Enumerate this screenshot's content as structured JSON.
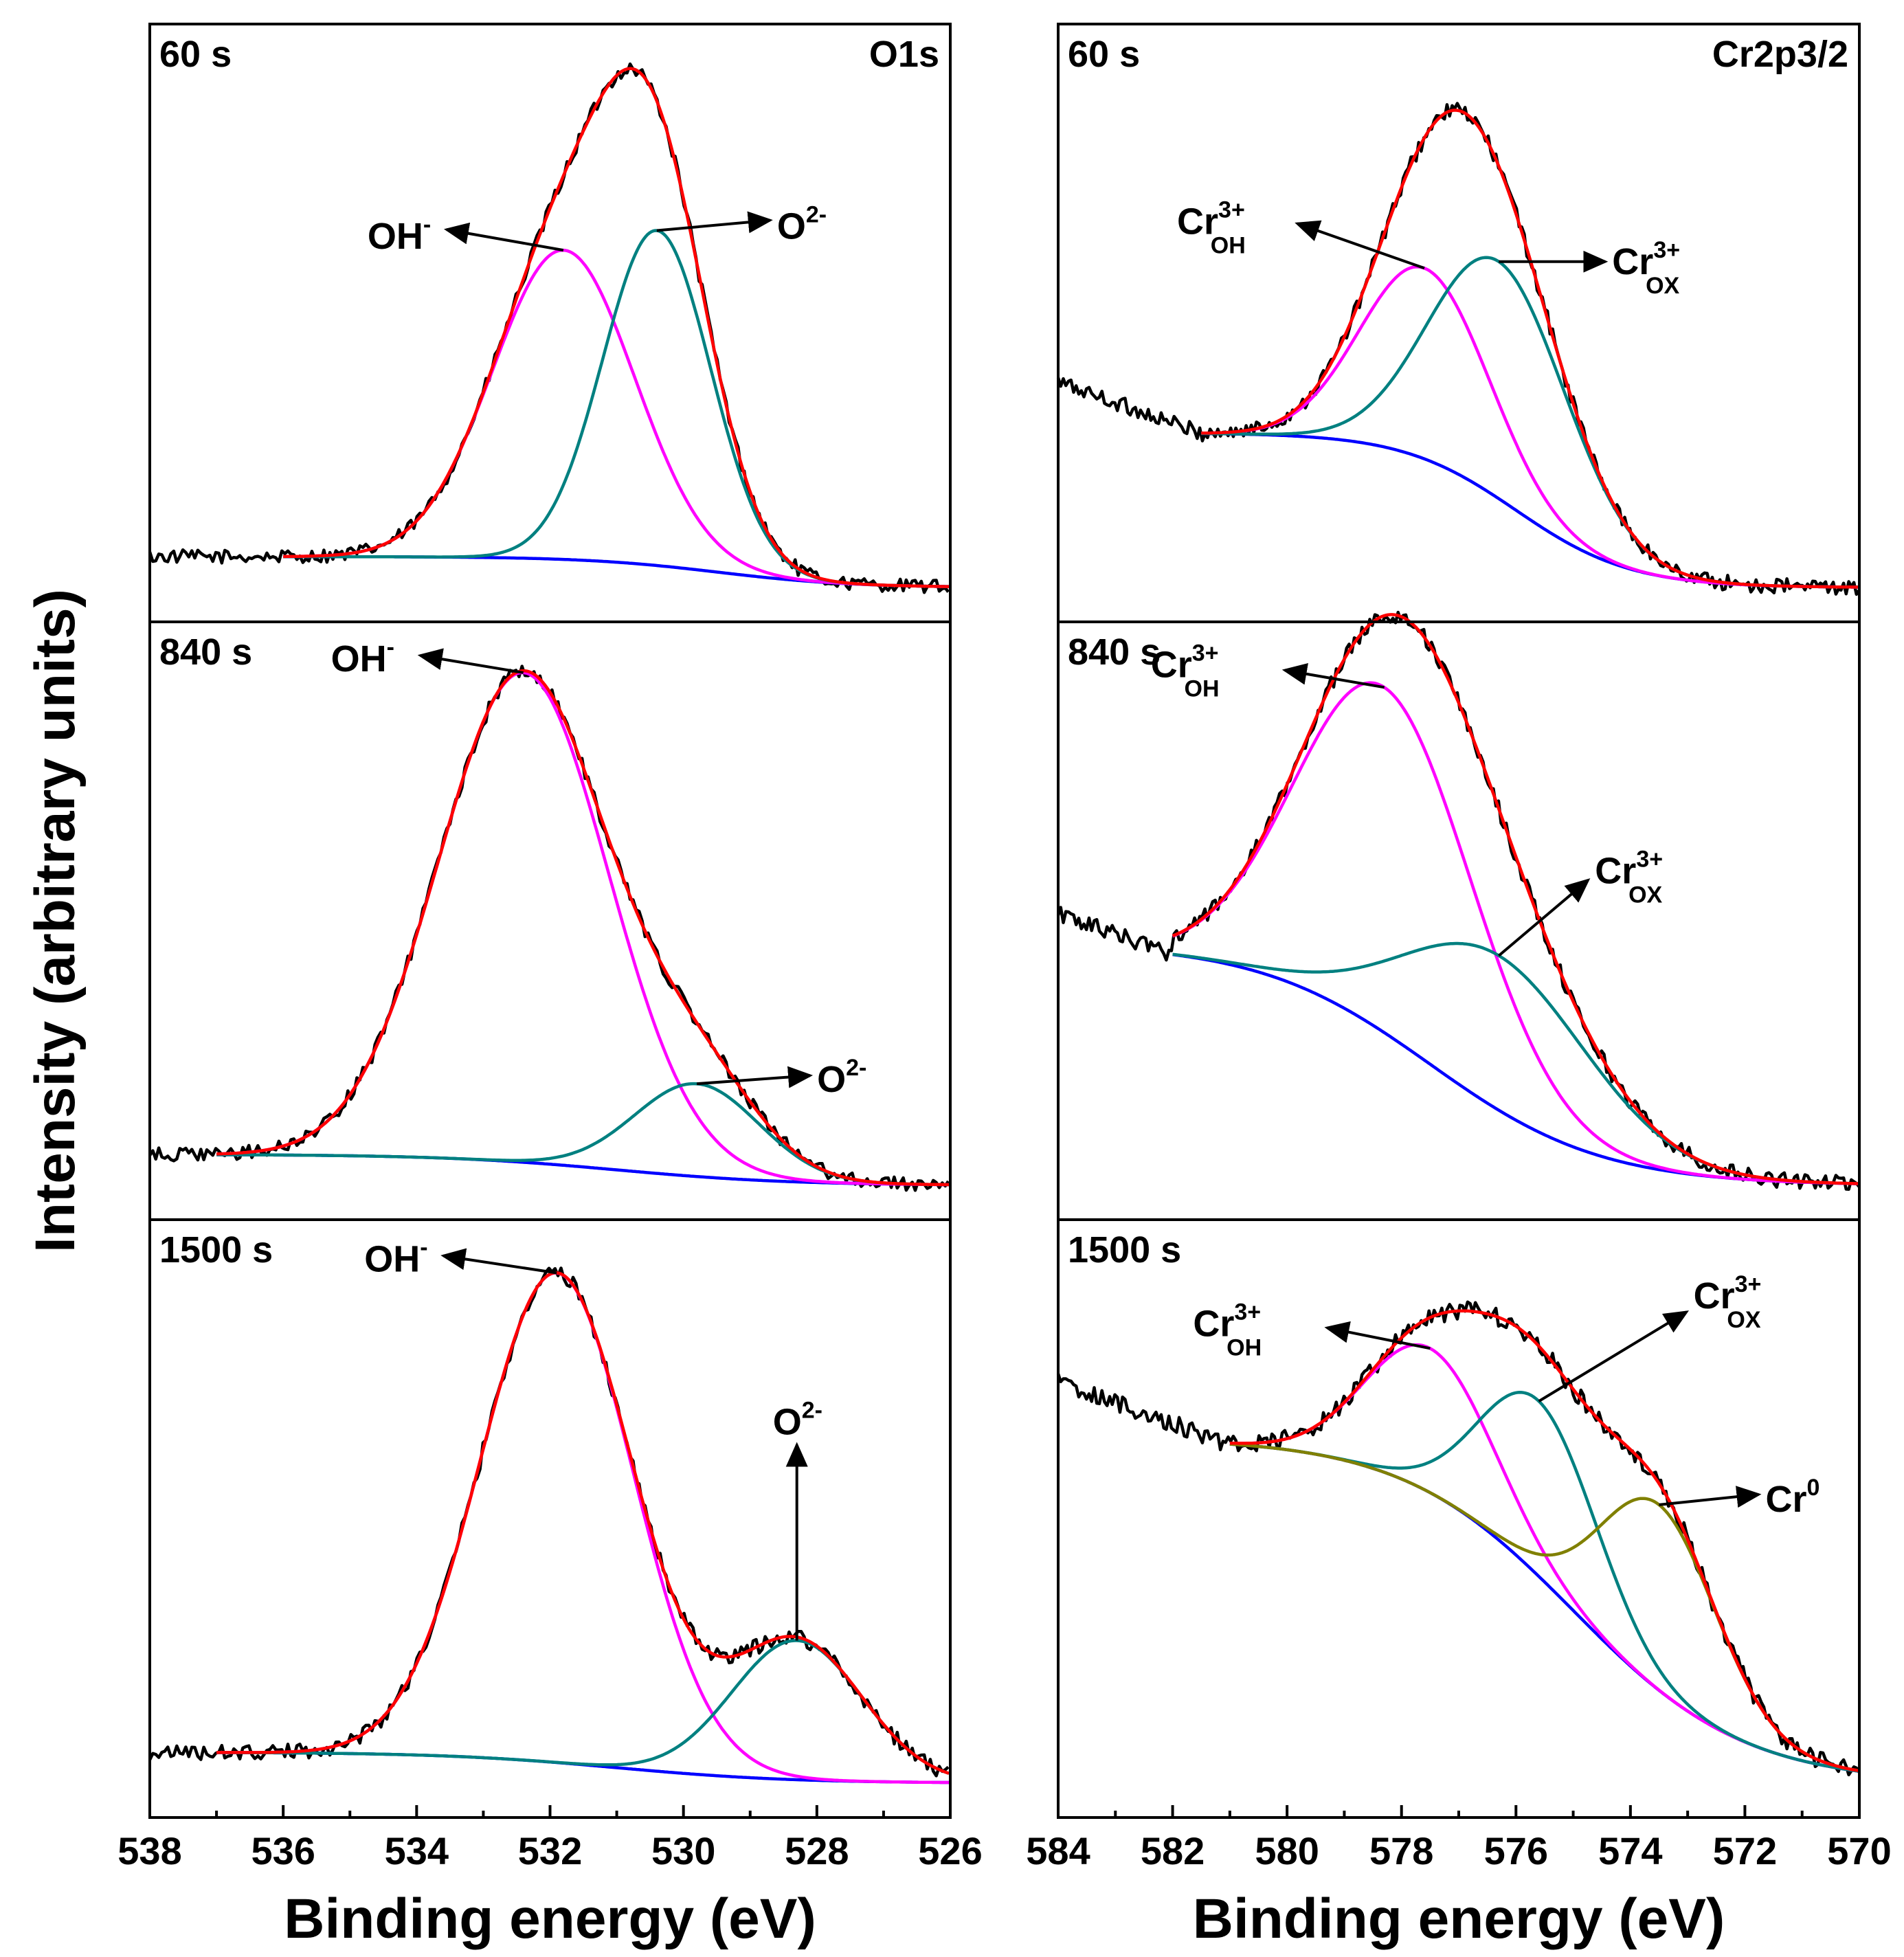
{
  "chart_data": {
    "type": "line",
    "y_axis_label": "Intensity (arbitrary units)",
    "colors": {
      "experimental": "#000000",
      "envelope": "#ff0000",
      "OH": "#ff00ff",
      "O2": "#008080",
      "Cr_OX": "#008080",
      "Cr0": "#808000",
      "background": "#0000ff"
    },
    "columns": [
      {
        "id": "O1s",
        "spectrum_label": "O1s",
        "xlabel": "Binding energy (eV)",
        "xlim": [
          538,
          526
        ],
        "xticks": [
          538,
          536,
          534,
          532,
          530,
          528,
          526
        ],
        "xtick_labels": [
          "538",
          "536",
          "534",
          "532",
          "530",
          "528",
          "526"
        ],
        "panels": [
          {
            "time": "60 s",
            "fit_range": [
              536,
              526
            ],
            "noise": 0.012,
            "bg_tail": [
              0,
              526.0
            ],
            "background": {
              "high": 0.06,
              "low": 0.0,
              "center": 529.5,
              "width": 1.0
            },
            "components": [
              {
                "name": "OH-",
                "series": "OH",
                "center": 531.8,
                "height": 0.6,
                "fwhm": 2.5
              },
              {
                "name": "O2-",
                "series": "O2",
                "center": 530.4,
                "height": 0.65,
                "fwhm": 1.9
              }
            ],
            "annotations": [
              {
                "label": "OH",
                "sup": "-",
                "sub": "",
                "to": "OH-"
              },
              {
                "label": "O",
                "sup": "2-",
                "sub": "",
                "to": "O2-"
              }
            ]
          },
          {
            "time": "840 s",
            "fit_range": [
              537,
              526
            ],
            "noise": 0.012,
            "bg_tail": [
              0,
              526.0
            ],
            "background": {
              "high": 0.06,
              "low": 0.0,
              "center": 531.0,
              "width": 1.3
            },
            "components": [
              {
                "name": "OH-",
                "series": "OH",
                "center": 532.4,
                "height": 0.95,
                "fwhm": 3.0
              },
              {
                "name": "O2-",
                "series": "O2",
                "center": 529.8,
                "height": 0.18,
                "fwhm": 2.2
              }
            ],
            "annotations": [
              {
                "label": "OH",
                "sup": "-",
                "sub": "",
                "to": "OH-"
              },
              {
                "label": "O",
                "sup": "2-",
                "sub": "",
                "to": "O2-"
              }
            ]
          },
          {
            "time": "1500 s",
            "fit_range": [
              537,
              526
            ],
            "noise": 0.014,
            "bg_tail": [
              0,
              526.0
            ],
            "background": {
              "high": 0.06,
              "low": 0.0,
              "center": 531.0,
              "width": 1.3
            },
            "components": [
              {
                "name": "OH-",
                "series": "OH",
                "center": 531.9,
                "height": 0.95,
                "fwhm": 2.7
              },
              {
                "name": "O2-",
                "series": "O2",
                "center": 528.3,
                "height": 0.27,
                "fwhm": 2.3
              }
            ],
            "annotations": [
              {
                "label": "OH",
                "sup": "-",
                "sub": "",
                "to": "OH-"
              },
              {
                "label": "O",
                "sup": "2-",
                "sub": "",
                "to": "O2-"
              }
            ]
          }
        ]
      },
      {
        "id": "Cr2p",
        "spectrum_label": "Cr2p3/2",
        "xlabel": "Binding energy (eV)",
        "xlim": [
          584,
          570
        ],
        "xticks": [
          584,
          582,
          580,
          578,
          576,
          574,
          572,
          570
        ],
        "xtick_labels": [
          "584",
          "582",
          "580",
          "578",
          "576",
          "574",
          "572",
          "570"
        ],
        "panels": [
          {
            "time": "60 s",
            "fit_range": [
              581.5,
              570
            ],
            "noise": 0.014,
            "bg_tail": [
              584,
              570
            ],
            "background": {
              "high": 0.3,
              "low": 0.0,
              "center": 576.0,
              "width": 1.0
            },
            "components": [
              {
                "name": "Cr3+ OH",
                "series": "OH",
                "center": 577.6,
                "height": 0.37,
                "fwhm": 2.6
              },
              {
                "name": "Cr3+ OX",
                "series": "Cr_OX",
                "center": 576.3,
                "height": 0.46,
                "fwhm": 2.8
              }
            ],
            "annotations": [
              {
                "label": "Cr",
                "sup": "3+",
                "sub": "OH",
                "to": "Cr3+ OH"
              },
              {
                "label": "Cr",
                "sup": "3+",
                "sub": "OX",
                "to": "Cr3+ OX"
              }
            ]
          },
          {
            "time": "840 s",
            "fit_range": [
              582,
              570
            ],
            "noise": 0.014,
            "bg_tail": [
              584,
              570
            ],
            "background": {
              "high": 0.47,
              "low": 0.0,
              "center": 577.5,
              "width": 1.5
            },
            "components": [
              {
                "name": "Cr3+ OH",
                "series": "OH",
                "center": 578.3,
                "height": 0.67,
                "fwhm": 3.6
              },
              {
                "name": "Cr3+ OX",
                "series": "Cr_OX",
                "center": 576.3,
                "height": 0.3,
                "fwhm": 3.8
              }
            ],
            "annotations": [
              {
                "label": "Cr",
                "sup": "3+",
                "sub": "OH",
                "to": "Cr3+ OH"
              },
              {
                "label": "Cr",
                "sup": "3+",
                "sub": "OX",
                "to": "Cr3+ OX"
              }
            ]
          },
          {
            "time": "1500 s",
            "fit_range": [
              581,
              570
            ],
            "noise": 0.016,
            "bg_tail": [
              584,
              570
            ],
            "background": {
              "high": 0.67,
              "low": 0.0,
              "center": 575.0,
              "width": 1.5
            },
            "components": [
              {
                "name": "Cr3+ OH",
                "series": "OH",
                "center": 577.5,
                "height": 0.28,
                "fwhm": 2.6
              },
              {
                "name": "Cr3+ OX",
                "series": "Cr_OX",
                "center": 575.6,
                "height": 0.34,
                "fwhm": 2.4
              },
              {
                "name": "Cr0",
                "series": "Cr0",
                "center": 573.5,
                "height": 0.36,
                "fwhm": 2.4
              }
            ],
            "annotations": [
              {
                "label": "Cr",
                "sup": "3+",
                "sub": "OH",
                "to": "Cr3+ OH"
              },
              {
                "label": "Cr",
                "sup": "3+",
                "sub": "OX",
                "to": "Cr3+ OX"
              },
              {
                "label": "Cr",
                "sup": "0",
                "sub": "",
                "to": "Cr0"
              }
            ]
          }
        ]
      }
    ]
  }
}
